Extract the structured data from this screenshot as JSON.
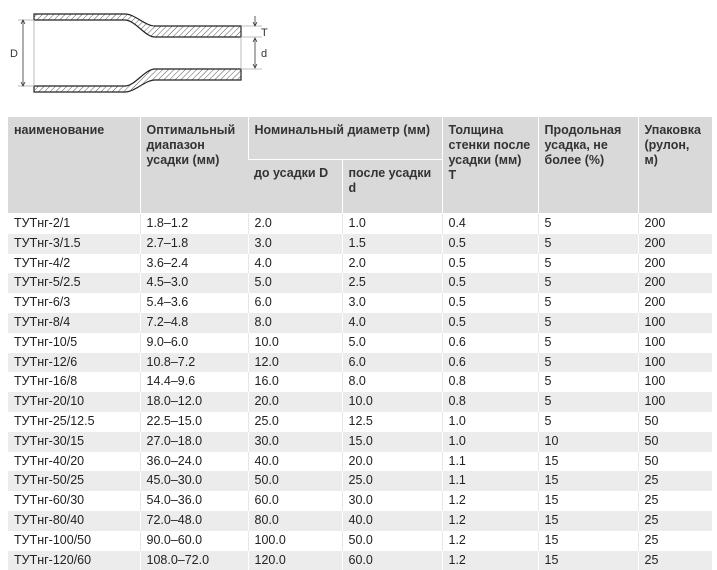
{
  "diagram": {
    "labels": {
      "outer_diameter": "D",
      "inner_diameter": "d",
      "wall_thickness": "T"
    }
  },
  "table": {
    "headers": {
      "name": "наименование",
      "range": "Оптимальный диапазон усадки (мм)",
      "nominal": "Номинальный диаметр (мм)",
      "before": "до усадки D",
      "after": "после усадки d",
      "thickness": "Толщина стенки после усадки (мм) T",
      "shrink": "Продольная усадка, не более (%)",
      "pack": "Упаковка (рулон, м)"
    },
    "rows": [
      [
        "ТУТнг-2/1",
        "1.8–1.2",
        "2.0",
        "1.0",
        "0.4",
        "5",
        "200"
      ],
      [
        "ТУТнг-3/1.5",
        "2.7–1.8",
        "3.0",
        "1.5",
        "0.5",
        "5",
        "200"
      ],
      [
        "ТУТнг-4/2",
        "3.6–2.4",
        "4.0",
        "2.0",
        "0.5",
        "5",
        "200"
      ],
      [
        "ТУТнг-5/2.5",
        "4.5–3.0",
        "5.0",
        "2.5",
        "0.5",
        "5",
        "200"
      ],
      [
        "ТУТнг-6/3",
        "5.4–3.6",
        "6.0",
        "3.0",
        "0.5",
        "5",
        "200"
      ],
      [
        "ТУТнг-8/4",
        "7.2–4.8",
        "8.0",
        "4.0",
        "0.5",
        "5",
        "100"
      ],
      [
        "ТУТнг-10/5",
        "9.0–6.0",
        "10.0",
        "5.0",
        "0.6",
        "5",
        "100"
      ],
      [
        "ТУТнг-12/6",
        "10.8–7.2",
        "12.0",
        "6.0",
        "0.6",
        "5",
        "100"
      ],
      [
        "ТУТнг-16/8",
        "14.4–9.6",
        "16.0",
        "8.0",
        "0.8",
        "5",
        "100"
      ],
      [
        "ТУТнг-20/10",
        "18.0–12.0",
        "20.0",
        "10.0",
        "0.8",
        "5",
        "100"
      ],
      [
        "ТУТнг-25/12.5",
        "22.5–15.0",
        "25.0",
        "12.5",
        "1.0",
        "5",
        "50"
      ],
      [
        "ТУТнг-30/15",
        "27.0–18.0",
        "30.0",
        "15.0",
        "1.0",
        "10",
        "50"
      ],
      [
        "ТУТнг-40/20",
        "36.0–24.0",
        "40.0",
        "20.0",
        "1.1",
        "15",
        "50"
      ],
      [
        "ТУТнг-50/25",
        "45.0–30.0",
        "50.0",
        "25.0",
        "1.1",
        "15",
        "25"
      ],
      [
        "ТУТнг-60/30",
        "54.0–36.0",
        "60.0",
        "30.0",
        "1.2",
        "15",
        "25"
      ],
      [
        "ТУТнг-80/40",
        "72.0–48.0",
        "80.0",
        "40.0",
        "1.2",
        "15",
        "25"
      ],
      [
        "ТУТнг-100/50",
        "90.0–60.0",
        "100.0",
        "50.0",
        "1.2",
        "15",
        "25"
      ],
      [
        "ТУТнг-120/60",
        "108.0–72.0",
        "120.0",
        "60.0",
        "1.2",
        "15",
        "25"
      ]
    ]
  }
}
